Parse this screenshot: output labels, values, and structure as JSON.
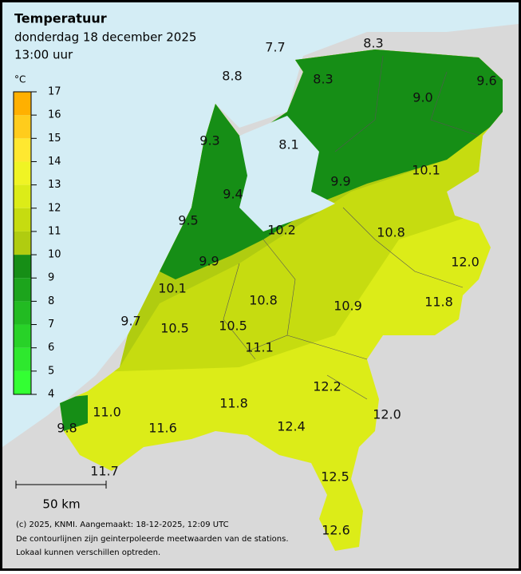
{
  "header": {
    "title": "Temperatuur",
    "subtitle": "donderdag 18 december 2025",
    "time": "13:00 uur"
  },
  "legend": {
    "unit": "°C",
    "ticks": [
      4,
      5,
      6,
      7,
      8,
      9,
      10,
      11,
      12,
      13,
      14,
      15,
      16,
      17
    ],
    "colors": [
      "#33ff33",
      "#2ee82e",
      "#28d228",
      "#22bb22",
      "#1ca41c",
      "#168e16",
      "#b0cc10",
      "#c6dc10",
      "#dcec18",
      "#f0f424",
      "#ffe830",
      "#ffcc1c",
      "#ffb000"
    ]
  },
  "stations": {
    "values": [
      7.7,
      8.3,
      8.8,
      8.3,
      9.6,
      9.0,
      9.3,
      8.1,
      9.9,
      10.1,
      9.4,
      9.5,
      10.2,
      10.8,
      9.9,
      12.0,
      10.1,
      10.8,
      10.9,
      11.8,
      9.7,
      10.5,
      10.5,
      11.1,
      12.2,
      11.8,
      11.0,
      12.0,
      12.4,
      9.8,
      11.6,
      11.7,
      12.5,
      12.6
    ],
    "value_labels": [
      "7.7",
      "8.3",
      "8.8",
      "8.3",
      "9.6",
      "9.0",
      "9.3",
      "8.1",
      "9.9",
      "10.1",
      "9.4",
      "9.5",
      "10.2",
      "10.8",
      "9.9",
      "12.0",
      "10.1",
      "10.8",
      "10.9",
      "11.8",
      "9.7",
      "10.5",
      "10.5",
      "11.1",
      "12.2",
      "11.8",
      "11.0",
      "12.0",
      "12.4",
      "9.8",
      "11.6",
      "11.7",
      "12.5",
      "12.6"
    ]
  },
  "scale": {
    "label": "50 km"
  },
  "footer": {
    "lines": [
      "(c) 2025, KNMI. Aangemaakt: 18-12-2025, 12:09 UTC",
      "De contourlijnen zijn geinterpoleerde meetwaarden van de stations.",
      "Lokaal kunnen verschillen optreden."
    ]
  }
}
